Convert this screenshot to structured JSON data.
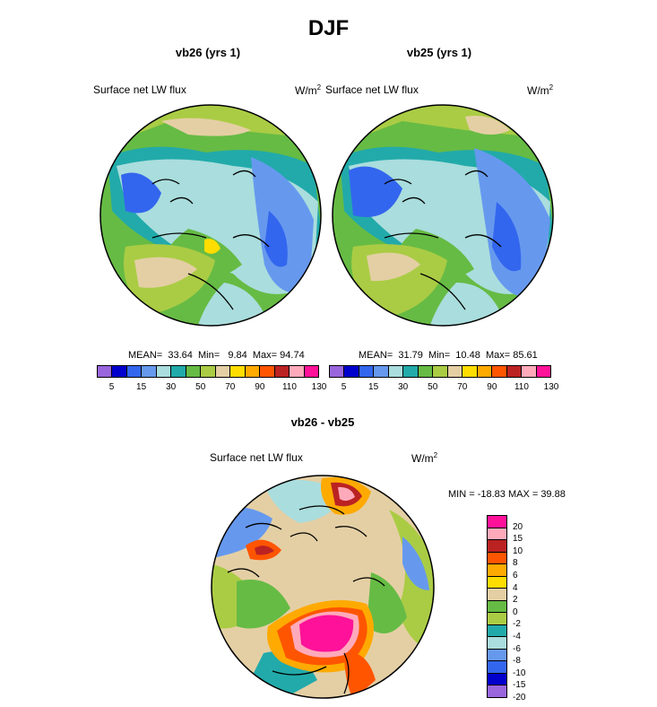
{
  "title": "DJF",
  "panels": [
    {
      "title": "vb26 (yrs 1)",
      "variable": "Surface net LW flux",
      "units": "W/m",
      "units_sup": "2",
      "mean_label": "MEAN=",
      "mean": "33.64",
      "min_label": "Min=",
      "min": "9.84",
      "max_label": "Max=",
      "max": "94.74"
    },
    {
      "title": "vb25 (yrs 1)",
      "variable": "Surface net LW flux",
      "units": "W/m",
      "units_sup": "2",
      "mean_label": "MEAN=",
      "mean": "31.79",
      "min_label": "Min=",
      "min": "10.48",
      "max_label": "Max=",
      "max": "85.61"
    }
  ],
  "diff_panel": {
    "title": "vb26 - vb25",
    "variable": "Surface net LW flux",
    "units": "W/m",
    "units_sup": "2",
    "minmax": "MIN = -18.83 MAX =  39.88"
  },
  "colorbar_h": {
    "colors": [
      "#9966dd",
      "#0000cc",
      "#3366ee",
      "#6699ee",
      "#aadddd",
      "#22aaaa",
      "#66bb44",
      "#aacc44",
      "#e4cfa4",
      "#ffdd00",
      "#ffaa00",
      "#ff5500",
      "#bb2222",
      "#ffaabb",
      "#ff1199"
    ],
    "labels": [
      "5",
      "15",
      "30",
      "50",
      "70",
      "90",
      "110",
      "130"
    ]
  },
  "colorbar_v": {
    "colors": [
      "#ff1199",
      "#ffaabb",
      "#bb2222",
      "#ff5500",
      "#ffaa00",
      "#ffdd00",
      "#e4cfa4",
      "#66bb44",
      "#aacc44",
      "#22aaaa",
      "#aadddd",
      "#6699ee",
      "#3366ee",
      "#0000cc",
      "#9966dd"
    ],
    "labels": [
      "20",
      "15",
      "10",
      "8",
      "6",
      "4",
      "2",
      "0",
      "-2",
      "-4",
      "-6",
      "-8",
      "-10",
      "-15",
      "-20"
    ]
  }
}
